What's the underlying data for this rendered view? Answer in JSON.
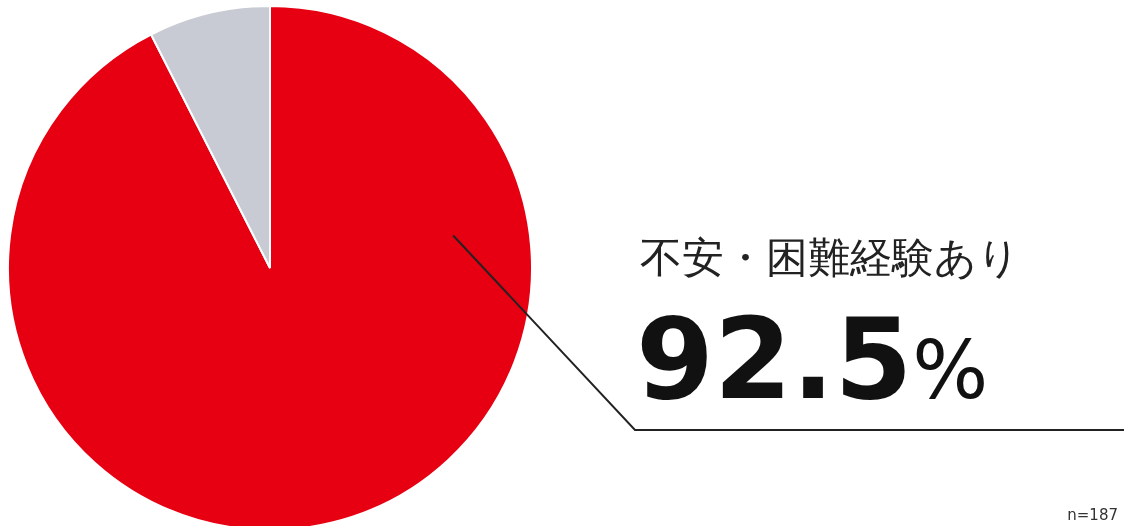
{
  "chart_data": {
    "type": "pie",
    "categories": [
      "不安・困難経験あり",
      null
    ],
    "values": [
      92.5,
      7.5
    ],
    "colors": [
      "#e60012",
      "#c9cbd4"
    ],
    "value_labels": [
      "92.5%",
      null
    ],
    "annotations": [
      "n=187"
    ]
  }
}
